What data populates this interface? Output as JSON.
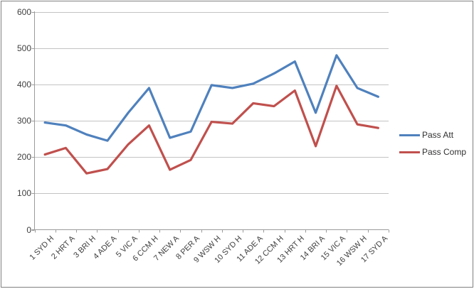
{
  "chart_data": {
    "type": "line",
    "title": "",
    "xlabel": "",
    "ylabel": "",
    "categories": [
      "1 SYD H",
      "2 HRT A",
      "3 BRI H",
      "4 ADE A",
      "5 VIC A",
      "6 CCM H",
      "7 NEW A",
      "8 PER A",
      "9 WSW H",
      "10 SYD H",
      "11 ADE A",
      "12 CCM H",
      "13 HRT H",
      "14 BRI A",
      "15 VIC A",
      "16 WSW H",
      "17 SYD A"
    ],
    "series": [
      {
        "name": "Pass Att",
        "color": "#4F81BD",
        "values": [
          295,
          287,
          262,
          245,
          322,
          390,
          253,
          270,
          398,
          390,
          402,
          430,
          463,
          322,
          480,
          390,
          366
        ]
      },
      {
        "name": "Pass Comp",
        "color": "#C0504D",
        "values": [
          207,
          225,
          155,
          167,
          235,
          287,
          165,
          192,
          297,
          292,
          348,
          340,
          383,
          230,
          396,
          290,
          280
        ]
      }
    ],
    "ylim": [
      0,
      600
    ],
    "yticks": [
      0,
      100,
      200,
      300,
      400,
      500,
      600
    ],
    "grid": true,
    "legend_position": "right"
  },
  "colors": {
    "background": "#FFFFFF",
    "border": "#808080",
    "gridline": "#C3C3C3",
    "axis": "#9B9B9B",
    "tick_text": "#3F3F3F",
    "series_1": "#4F81BD",
    "series_2": "#C0504D"
  }
}
